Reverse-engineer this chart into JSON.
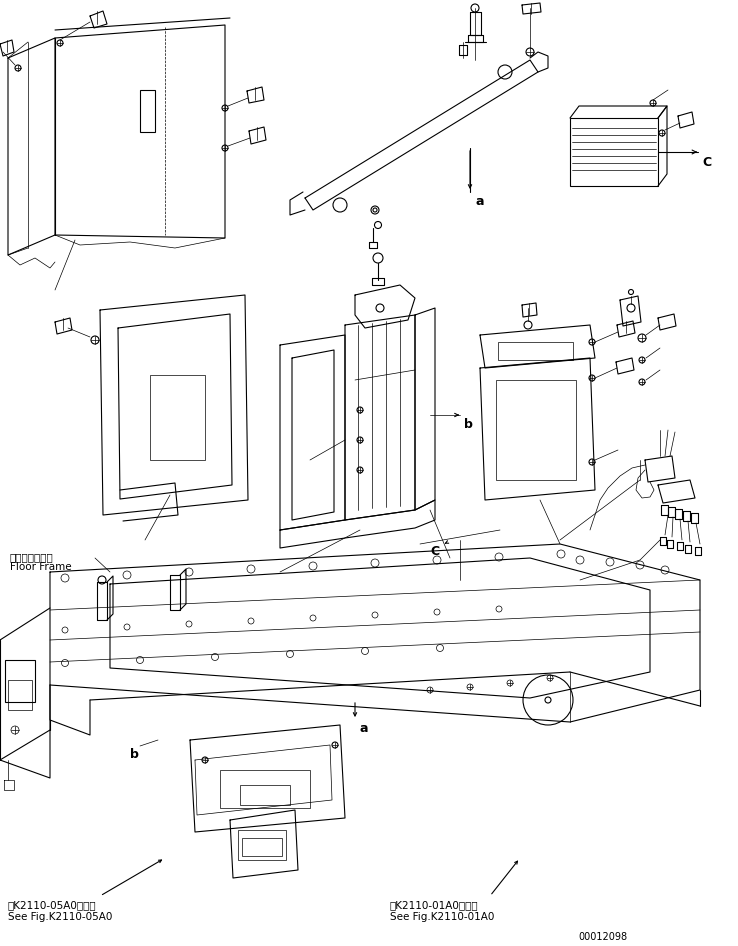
{
  "bg_color": "#ffffff",
  "line_color": "#000000",
  "fig_width": 7.38,
  "fig_height": 9.46,
  "dpi": 100,
  "bottom_left_text1": "第K2110-05A0図参照",
  "bottom_left_text2": "See Fig.K2110-05A0",
  "bottom_right_text1": "第K2110-01A0図参照",
  "bottom_right_text2": "See Fig.K2110-01A0",
  "floor_frame_jp": "フロアフレーム",
  "floor_frame_en": "Floor Frame",
  "page_number": "00012098"
}
